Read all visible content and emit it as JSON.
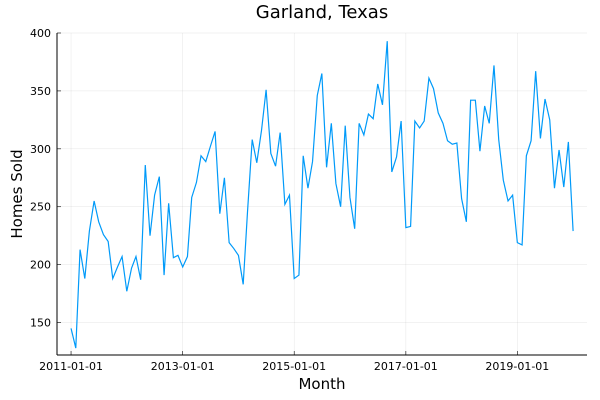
{
  "chart_data": {
    "type": "line",
    "title": "Garland, Texas",
    "x_label": "Month",
    "y_label": "Homes Sold",
    "x": [
      "2011-01-01",
      "2011-02-01",
      "2011-03-01",
      "2011-04-01",
      "2011-05-01",
      "2011-06-01",
      "2011-07-01",
      "2011-08-01",
      "2011-09-01",
      "2011-10-01",
      "2011-11-01",
      "2011-12-01",
      "2012-01-01",
      "2012-02-01",
      "2012-03-01",
      "2012-04-01",
      "2012-05-01",
      "2012-06-01",
      "2012-07-01",
      "2012-08-01",
      "2012-09-01",
      "2012-10-01",
      "2012-11-01",
      "2012-12-01",
      "2013-01-01",
      "2013-02-01",
      "2013-03-01",
      "2013-04-01",
      "2013-05-01",
      "2013-06-01",
      "2013-07-01",
      "2013-08-01",
      "2013-09-01",
      "2013-10-01",
      "2013-11-01",
      "2013-12-01",
      "2014-01-01",
      "2014-02-01",
      "2014-03-01",
      "2014-04-01",
      "2014-05-01",
      "2014-06-01",
      "2014-07-01",
      "2014-08-01",
      "2014-09-01",
      "2014-10-01",
      "2014-11-01",
      "2014-12-01",
      "2015-01-01",
      "2015-02-01",
      "2015-03-01",
      "2015-04-01",
      "2015-05-01",
      "2015-06-01",
      "2015-07-01",
      "2015-08-01",
      "2015-09-01",
      "2015-10-01",
      "2015-11-01",
      "2015-12-01",
      "2016-01-01",
      "2016-02-01",
      "2016-03-01",
      "2016-04-01",
      "2016-05-01",
      "2016-06-01",
      "2016-07-01",
      "2016-08-01",
      "2016-09-01",
      "2016-10-01",
      "2016-11-01",
      "2016-12-01",
      "2017-01-01",
      "2017-02-01",
      "2017-03-01",
      "2017-04-01",
      "2017-05-01",
      "2017-06-01",
      "2017-07-01",
      "2017-08-01",
      "2017-09-01",
      "2017-10-01",
      "2017-11-01",
      "2017-12-01",
      "2018-01-01",
      "2018-02-01",
      "2018-03-01",
      "2018-04-01",
      "2018-05-01",
      "2018-06-01",
      "2018-07-01",
      "2018-08-01",
      "2018-09-01",
      "2018-10-01",
      "2018-11-01",
      "2018-12-01",
      "2019-01-01",
      "2019-02-01",
      "2019-03-01",
      "2019-04-01",
      "2019-05-01",
      "2019-06-01",
      "2019-07-01",
      "2019-08-01",
      "2019-09-01",
      "2019-10-01",
      "2019-11-01",
      "2019-12-01",
      "2020-01-01"
    ],
    "series": [
      {
        "color": "#009af9",
        "values": [
          145,
          128,
          213,
          188,
          229,
          255,
          237,
          226,
          220,
          188,
          198,
          207,
          177,
          197,
          207,
          187,
          286,
          225,
          260,
          276,
          191,
          253,
          206,
          208,
          198,
          207,
          258,
          271,
          294,
          289,
          302,
          315,
          244,
          275,
          219,
          214,
          208,
          183,
          245,
          308,
          288,
          316,
          351,
          296,
          285,
          314,
          252,
          260,
          188,
          191,
          294,
          266,
          289,
          346,
          365,
          284,
          322,
          270,
          250,
          320,
          258,
          231,
          322,
          312,
          330,
          326,
          356,
          338,
          393,
          280,
          293,
          324,
          232,
          233,
          324,
          318,
          324,
          361,
          352,
          331,
          322,
          307,
          304,
          305,
          257,
          237,
          342,
          342,
          298,
          337,
          322,
          372,
          308,
          273,
          255,
          260,
          219,
          217,
          294,
          307,
          367,
          309,
          343,
          325,
          266,
          299,
          267,
          306,
          229
        ]
      }
    ],
    "xlim": [
      "2010-10-01",
      "2020-04-01"
    ],
    "xticks": [
      "2011-01-01",
      "2013-01-01",
      "2015-01-01",
      "2017-01-01",
      "2019-01-01"
    ],
    "ylim": [
      122,
      400
    ],
    "yticks": [
      150,
      200,
      250,
      300,
      350,
      400
    ],
    "grid": true
  }
}
